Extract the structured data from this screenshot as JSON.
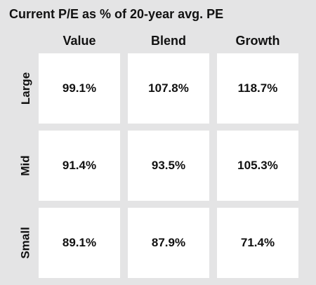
{
  "chart_data": {
    "type": "table",
    "title": "Current P/E as % of 20-year avg. PE",
    "columns": [
      "Value",
      "Blend",
      "Growth"
    ],
    "rows": [
      "Large",
      "Mid",
      "Small"
    ],
    "cells": [
      [
        "99.1%",
        "107.8%",
        "118.7%"
      ],
      [
        "91.4%",
        "93.5%",
        "105.3%"
      ],
      [
        "89.1%",
        "87.9%",
        "71.4%"
      ]
    ],
    "values": [
      [
        99.1,
        107.8,
        118.7
      ],
      [
        91.4,
        93.5,
        105.3
      ],
      [
        89.1,
        87.9,
        71.4
      ]
    ],
    "unit": "%"
  },
  "colors": {
    "background": "#e4e4e5",
    "cell": "#ffffff",
    "text": "#111111"
  }
}
